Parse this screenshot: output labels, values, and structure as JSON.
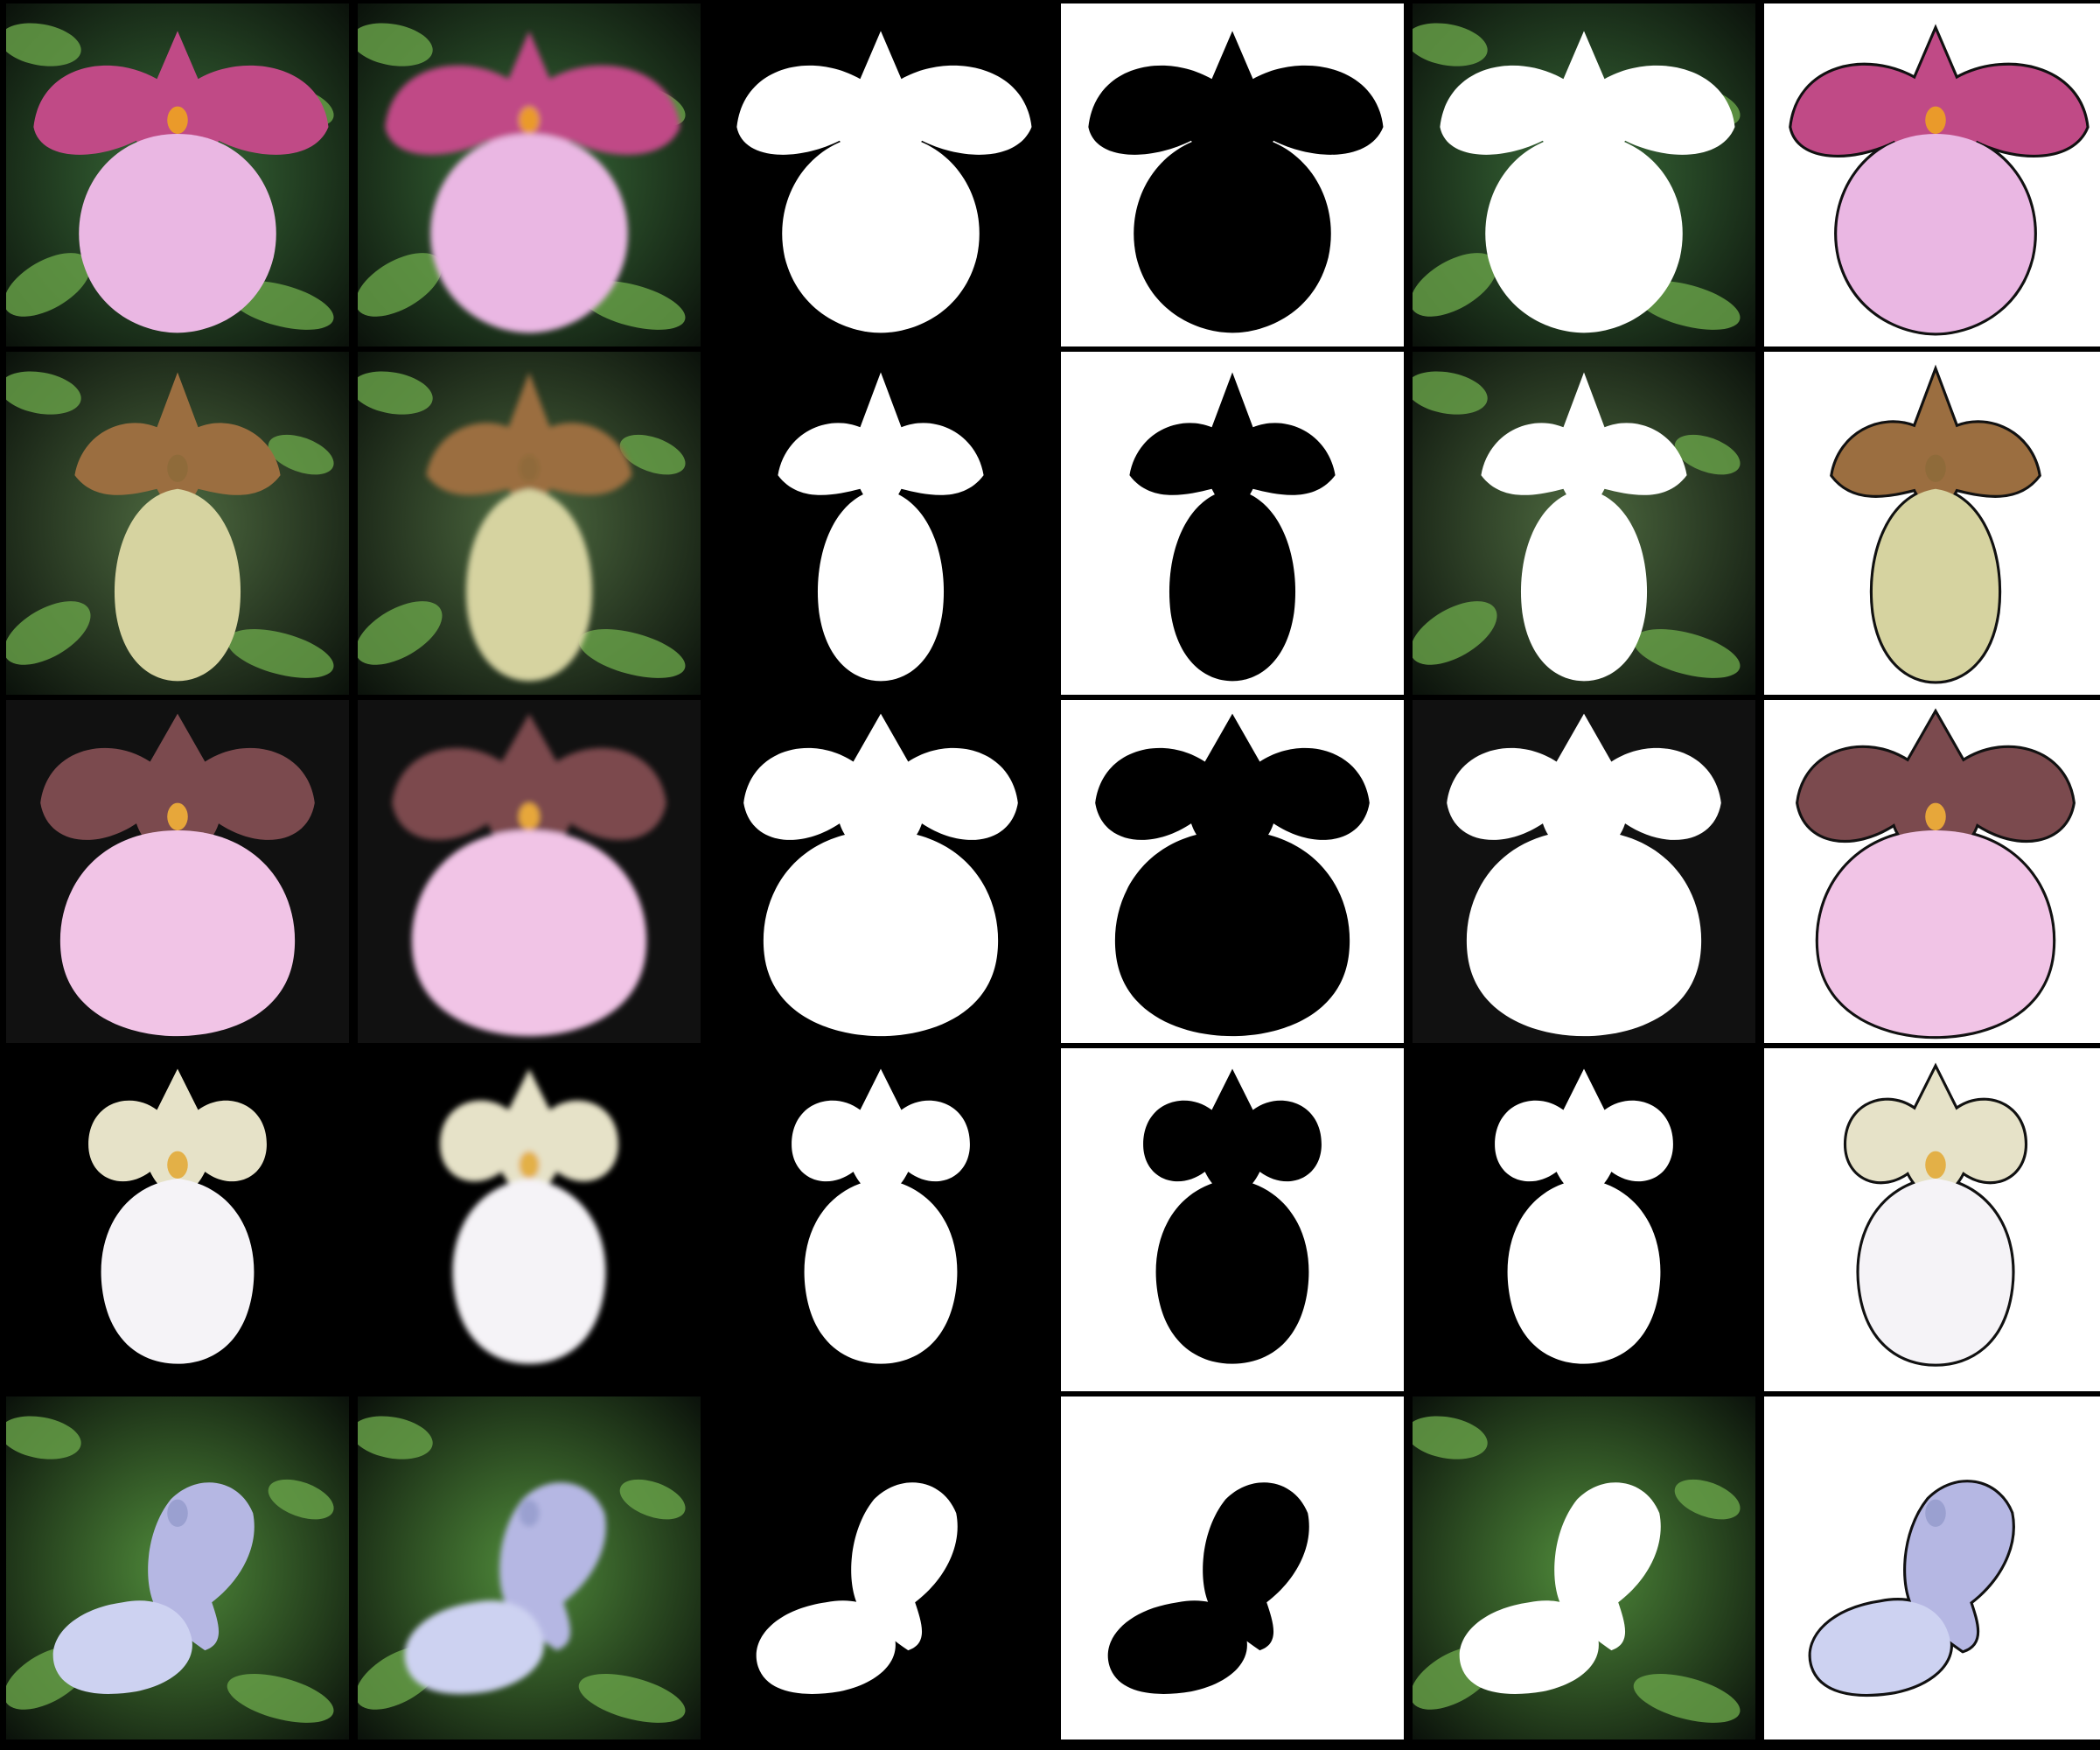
{
  "columns": [
    "original",
    "reconstruction",
    "mask",
    "inverted-mask",
    "background-composite",
    "foreground-composite"
  ],
  "rows": [
    {
      "subject": "pink-slipper-orchid",
      "petal": "#c04a86",
      "lip": "#eab7e3",
      "center": "#ea9a2a",
      "bg": "#3b6e3a"
    },
    {
      "subject": "green-brown-slipper-orchid",
      "petal": "#9b6e40",
      "lip": "#d6d3a0",
      "center": "#8f6b3a",
      "bg": "#4e6a40"
    },
    {
      "subject": "purple-pink-slipper-orchid",
      "petal": "#7b4a4e",
      "lip": "#f1c4e6",
      "center": "#e7a73a",
      "bg": "#111111"
    },
    {
      "subject": "white-slipper-orchid",
      "petal": "#e6e2c8",
      "lip": "#f5f3f7",
      "center": "#e3b047",
      "bg": "#000000"
    },
    {
      "subject": "blue-bellflower",
      "petal": "#b5b7e3",
      "lip": "#cdd2f1",
      "center": "#9aa0d0",
      "bg": "#4f8a3a"
    }
  ]
}
